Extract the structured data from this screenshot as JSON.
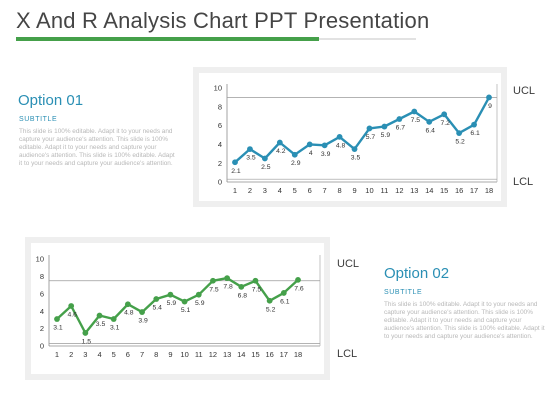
{
  "page": {
    "title": "X And R Analysis Chart PPT Presentation",
    "accent_color": "#45a04a",
    "text_accent_color": "#2a8fb4"
  },
  "option1": {
    "title": "Option  01",
    "subtitle": "SUBTITLE",
    "body": "This slide is 100% editable. Adapt it to your needs and capture your audience's attention. This slide is 100% editable. Adapt it to your needs and capture your audience's attention. This slide is 100% editable. Adapt it to your needs and capture your audience's attention."
  },
  "option2": {
    "title": "Option  02",
    "subtitle": "SUBTITLE",
    "body": "This slide is 100% editable. Adapt it to your needs and capture your audience's attention. This slide is 100% editable. Adapt it to your needs and capture your audience's attention. This slide is 100% editable. Adapt it to your needs and capture your audience's attention."
  },
  "chart_labels": {
    "ucl1": "UCL",
    "lcl1": "LCL",
    "ucl2": "UCL",
    "lcl2": "LCL"
  },
  "chart_data": [
    {
      "type": "line",
      "x": [
        1,
        2,
        3,
        4,
        5,
        6,
        7,
        8,
        9,
        10,
        11,
        12,
        13,
        14,
        15,
        16,
        17,
        18
      ],
      "x_tick_labels": [
        "1",
        "2",
        "3",
        "4",
        "5",
        "6",
        "7",
        "8",
        "9",
        "10",
        "11",
        "12",
        "13",
        "14",
        "15",
        "16",
        "17",
        "18"
      ],
      "series": [
        {
          "values": [
            2.1,
            3.5,
            2.5,
            4.2,
            2.9,
            4,
            3.9,
            4.8,
            3.5,
            5.7,
            5.9,
            6.7,
            7.5,
            6.4,
            7.2,
            5.2,
            6.1,
            9
          ],
          "color": "#2a8fb4"
        }
      ],
      "data_labels": [
        "2.1",
        "3.5",
        "2.5",
        "4.2",
        "2.9",
        "4",
        "3.9",
        "4.8",
        "3.5",
        "5.7",
        "5.9",
        "6.7",
        "7.5",
        "6.4",
        "7.2",
        "5.2",
        "6.1",
        "9"
      ],
      "ylim": [
        0,
        10
      ],
      "y_ticks": [
        0,
        2,
        4,
        6,
        8,
        10
      ],
      "reference_lines": [
        9,
        0.3
      ],
      "grid": false
    },
    {
      "type": "line",
      "x": [
        1,
        2,
        3,
        4,
        5,
        6,
        7,
        8,
        9,
        10,
        11,
        12,
        13,
        14,
        15,
        16,
        17,
        18
      ],
      "x_tick_labels": [
        "1",
        "2",
        "3",
        "4",
        "5",
        "6",
        "7",
        "8",
        "9",
        "10",
        "11",
        "12",
        "13",
        "14",
        "15",
        "16",
        "17",
        "18"
      ],
      "series": [
        {
          "values": [
            3.1,
            4.6,
            1.5,
            3.5,
            3.1,
            4.8,
            3.9,
            5.4,
            5.9,
            5.1,
            5.9,
            7.5,
            7.8,
            6.8,
            7.5,
            5.2,
            6.1,
            7.6
          ],
          "color": "#45a04a"
        }
      ],
      "data_labels": [
        "3.1",
        "4.6",
        "1.5",
        "3.5",
        "3.1",
        "4.8",
        "3.9",
        "5.4",
        "5.9",
        "5.1",
        "5.9",
        "7.5",
        "7.8",
        "6.8",
        "7.5",
        "5.2",
        "6.1",
        "7.6"
      ],
      "ylim": [
        0,
        10
      ],
      "y_ticks": [
        0,
        2,
        4,
        6,
        8,
        10
      ],
      "reference_lines": [
        7.5,
        0.3
      ],
      "grid": false
    }
  ]
}
